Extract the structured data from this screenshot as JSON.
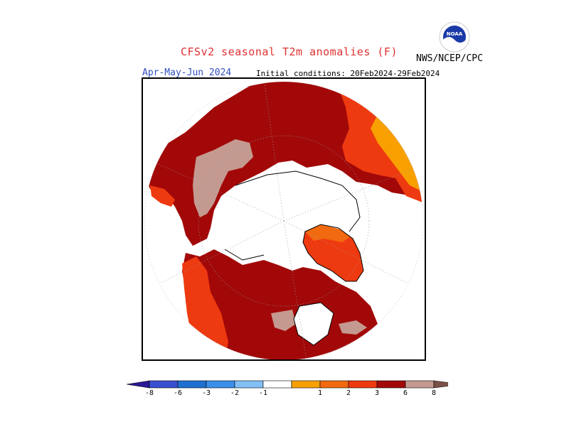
{
  "header": {
    "title": "CFSv2 seasonal T2m anomalies (F)",
    "title_color": "#e03030",
    "agency": "NWS/NCEP/CPC",
    "season": "Apr-May-Jun 2024",
    "season_color": "#3050c0",
    "initial_conditions": "Initial conditions: 20Feb2024-29Feb2024",
    "logo_text": "NOAA"
  },
  "legend": {
    "colors": {
      "lt_-8": "#2b1a96",
      "-8_-6": "#3a4fd0",
      "-6_-3": "#1f6fd0",
      "-3_-2": "#3a90e8",
      "-2_-1": "#82bff5",
      "-1_1": "#ffffff",
      "1_2": "#f7a000",
      "2_3": "#f26a10",
      "3_6": "#ee3a10",
      "6_8": "#a20808",
      "gt_8": "#c49a90",
      "gt_top": "#7a5148"
    },
    "tick_labels": [
      "-8",
      "-6",
      "-3",
      "-2",
      "-1",
      "1",
      "2",
      "3",
      "6",
      "8"
    ]
  },
  "map": {
    "projection": "polar-stereographic",
    "ocean_color": "#ffffff",
    "coastline_color": "#000000",
    "gridline_color": "#999999"
  }
}
